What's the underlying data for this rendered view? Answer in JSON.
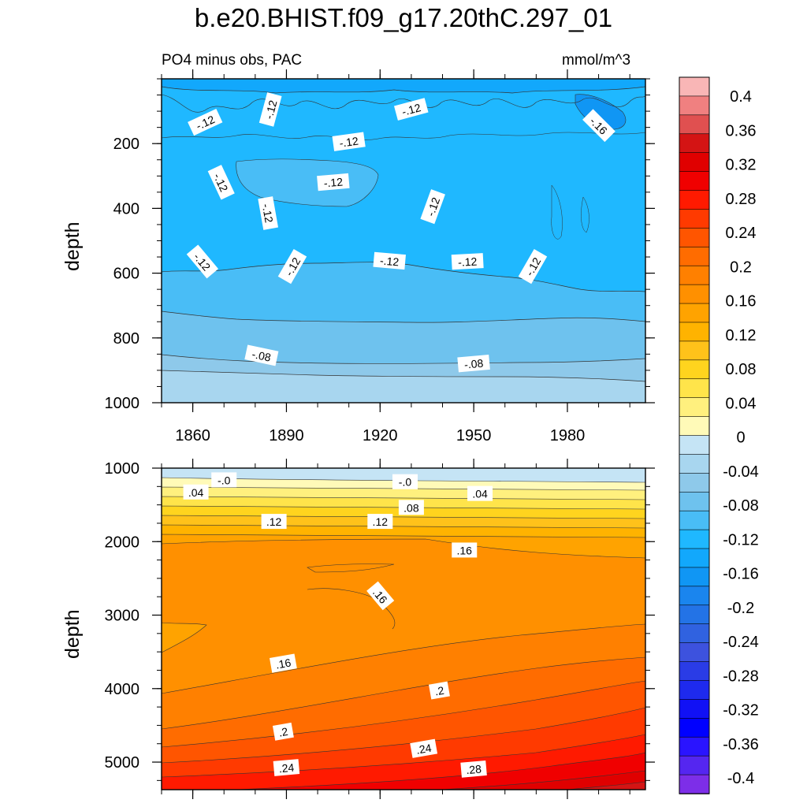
{
  "title": "b.e20.BHIST.f09_g17.20thC.297_01",
  "left_subtitle": "PO4 minus obs, PAC",
  "right_subtitle": "mmol/m^3",
  "chart_data": [
    {
      "type": "heatmap",
      "panel": "upper",
      "ylabel": "depth",
      "xlabel": "",
      "x_tick_labels": [
        "1860",
        "1890",
        "1920",
        "1950",
        "1980"
      ],
      "x_ticks": [
        1860,
        1890,
        1920,
        1950,
        1980
      ],
      "xlim": [
        1850,
        2005
      ],
      "y_tick_labels": [
        "200",
        "400",
        "600",
        "800",
        "1000"
      ],
      "y_ticks": [
        200,
        400,
        600,
        800,
        1000
      ],
      "ylim": [
        0,
        1000
      ],
      "y_reversed": true,
      "contour_labels": [
        {
          "text": "-.12",
          "x": 1864,
          "y": 135,
          "angle": -25
        },
        {
          "text": "-.12",
          "x": 1885,
          "y": 95,
          "angle": -75
        },
        {
          "text": "-.12",
          "x": 1930,
          "y": 95,
          "angle": -15
        },
        {
          "text": "-.12",
          "x": 1910,
          "y": 195,
          "angle": -8
        },
        {
          "text": "-.16",
          "x": 1990,
          "y": 145,
          "angle": 45
        },
        {
          "text": "-.12",
          "x": 1869,
          "y": 320,
          "angle": 65
        },
        {
          "text": "-.12",
          "x": 1905,
          "y": 320,
          "angle": -5
        },
        {
          "text": "-.12",
          "x": 1884,
          "y": 415,
          "angle": 80
        },
        {
          "text": "-.12",
          "x": 1937,
          "y": 395,
          "angle": -70
        },
        {
          "text": "-.12",
          "x": 1863,
          "y": 565,
          "angle": 50
        },
        {
          "text": "-.12",
          "x": 1892,
          "y": 580,
          "angle": -60
        },
        {
          "text": "-.12",
          "x": 1923,
          "y": 563,
          "angle": 5
        },
        {
          "text": "-.12",
          "x": 1948,
          "y": 565,
          "angle": -3
        },
        {
          "text": "-.12",
          "x": 1969,
          "y": 580,
          "angle": -60
        },
        {
          "text": "-.08",
          "x": 1882,
          "y": 855,
          "angle": 12
        },
        {
          "text": "-.08",
          "x": 1950,
          "y": 880,
          "angle": -5
        }
      ]
    },
    {
      "type": "heatmap",
      "panel": "lower",
      "ylabel": "depth",
      "xlabel": "",
      "x_ticks": [
        1860,
        1890,
        1920,
        1950,
        1980
      ],
      "xlim": [
        1850,
        2005
      ],
      "y_tick_labels": [
        "1000",
        "2000",
        "3000",
        "4000",
        "5000"
      ],
      "y_ticks": [
        1000,
        2000,
        3000,
        4000,
        5000
      ],
      "ylim": [
        1000,
        5375
      ],
      "y_reversed": true,
      "contour_labels": [
        {
          "text": "-.0",
          "x": 1870,
          "y": 1165,
          "angle": 0
        },
        {
          "text": "-.0",
          "x": 1928,
          "y": 1190,
          "angle": 0
        },
        {
          "text": ".04",
          "x": 1861,
          "y": 1330,
          "angle": 0
        },
        {
          "text": ".04",
          "x": 1952,
          "y": 1350,
          "angle": 0
        },
        {
          "text": ".08",
          "x": 1930,
          "y": 1540,
          "angle": 0
        },
        {
          "text": ".12",
          "x": 1886,
          "y": 1730,
          "angle": 0
        },
        {
          "text": ".12",
          "x": 1920,
          "y": 1730,
          "angle": 0
        },
        {
          "text": ".16",
          "x": 1947,
          "y": 2120,
          "angle": 0
        },
        {
          "text": ".16",
          "x": 1920,
          "y": 2740,
          "angle": 50
        },
        {
          "text": ".16",
          "x": 1889,
          "y": 3660,
          "angle": -10
        },
        {
          "text": ".2",
          "x": 1939,
          "y": 4030,
          "angle": -10
        },
        {
          "text": ".2",
          "x": 1889,
          "y": 4590,
          "angle": -10
        },
        {
          "text": ".24",
          "x": 1934,
          "y": 4820,
          "angle": -10
        },
        {
          "text": ".24",
          "x": 1890,
          "y": 5080,
          "angle": -5
        },
        {
          "text": ".28",
          "x": 1950,
          "y": 5100,
          "angle": -5
        }
      ]
    }
  ],
  "colorbar": {
    "labels": [
      "0.4",
      "0.36",
      "0.32",
      "0.28",
      "0.24",
      "0.2",
      "0.16",
      "0.12",
      "0.08",
      "0.04",
      "0",
      "-0.04",
      "-0.08",
      "-0.12",
      "-0.16",
      "-0.2",
      "-0.24",
      "-0.28",
      "-0.32",
      "-0.36",
      "-0.4"
    ],
    "colors": [
      "#f9b6b6",
      "#f08080",
      "#e05050",
      "#d41414",
      "#e00000",
      "#f00000",
      "#ff1a00",
      "#ff3a00",
      "#ff5500",
      "#ff6c00",
      "#ff8000",
      "#ff9000",
      "#ffa300",
      "#ffb300",
      "#ffc21a",
      "#ffd41e",
      "#ffe44a",
      "#fff07e",
      "#fffab8",
      "#c5e4f5",
      "#a8d6ef",
      "#8ec9ea",
      "#6ec2ee",
      "#49bdf6",
      "#1fb8ff",
      "#12a8fc",
      "#1096f4",
      "#1a85ee",
      "#2373e6",
      "#3062e0",
      "#3d52de",
      "#2a3ce6",
      "#1e2aee",
      "#1111f5",
      "#0000ff",
      "#2a14ff",
      "#5526f0",
      "#7d2ee8"
    ]
  }
}
